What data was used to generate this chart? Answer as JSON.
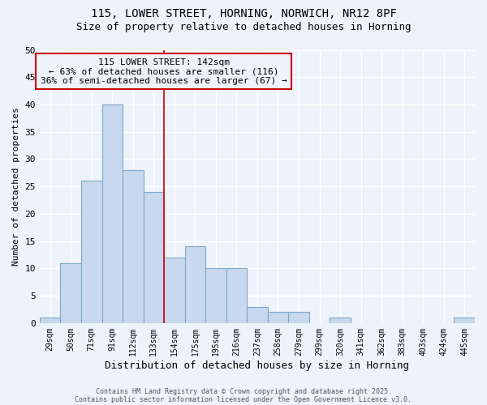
{
  "title_line1": "115, LOWER STREET, HORNING, NORWICH, NR12 8PF",
  "title_line2": "Size of property relative to detached houses in Horning",
  "xlabel": "Distribution of detached houses by size in Horning",
  "ylabel": "Number of detached properties",
  "categories": [
    "29sqm",
    "50sqm",
    "71sqm",
    "91sqm",
    "112sqm",
    "133sqm",
    "154sqm",
    "175sqm",
    "195sqm",
    "216sqm",
    "237sqm",
    "258sqm",
    "279sqm",
    "299sqm",
    "320sqm",
    "341sqm",
    "362sqm",
    "383sqm",
    "403sqm",
    "424sqm",
    "445sqm"
  ],
  "values": [
    1,
    11,
    26,
    40,
    28,
    24,
    12,
    14,
    10,
    10,
    3,
    2,
    2,
    0,
    1,
    0,
    0,
    0,
    0,
    0,
    1
  ],
  "bar_color": "#c8d8ee",
  "bar_edge_color": "#7aaac8",
  "background_color": "#eef2fb",
  "grid_color": "#ffffff",
  "annotation_text": "115 LOWER STREET: 142sqm\n← 63% of detached houses are smaller (116)\n36% of semi-detached houses are larger (67) →",
  "annotation_box_edge": "#cc0000",
  "vline_color": "#cc0000",
  "vline_x_index": 5.5,
  "ylim": [
    0,
    50
  ],
  "yticks": [
    0,
    5,
    10,
    15,
    20,
    25,
    30,
    35,
    40,
    45,
    50
  ],
  "footnote1": "Contains HM Land Registry data © Crown copyright and database right 2025.",
  "footnote2": "Contains public sector information licensed under the Open Government Licence v3.0."
}
